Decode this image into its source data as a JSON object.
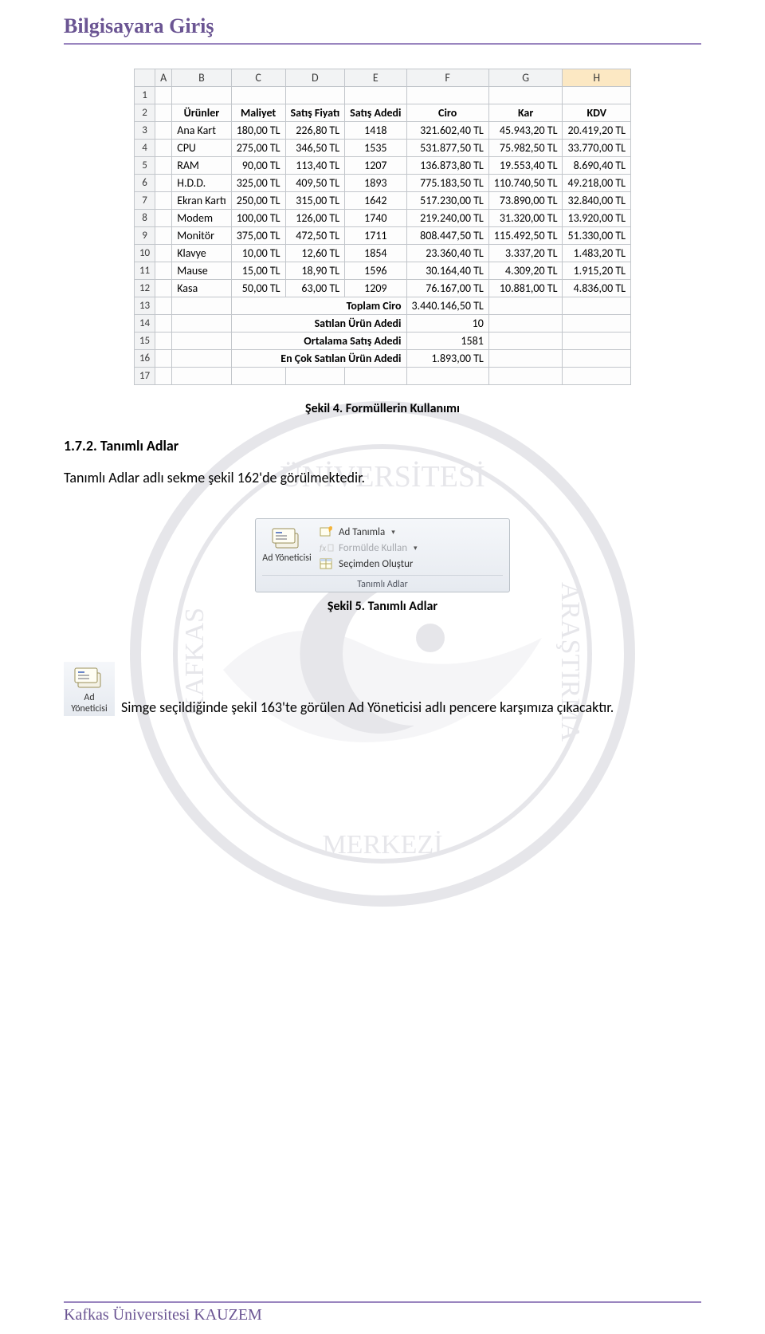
{
  "header": {
    "title": "Bilgisayara Giriş"
  },
  "spreadsheet": {
    "columns": [
      "A",
      "B",
      "C",
      "D",
      "E",
      "F",
      "G",
      "H"
    ],
    "selected_col_index": 7,
    "row_numbers": [
      "1",
      "2",
      "3",
      "4",
      "5",
      "6",
      "7",
      "8",
      "9",
      "10",
      "11",
      "12",
      "13",
      "14",
      "15",
      "16",
      "17"
    ],
    "header_row": [
      "Ürünler",
      "Maliyet",
      "Satış Fiyatı",
      "Satış Adedi",
      "Ciro",
      "Kar",
      "KDV"
    ],
    "data_rows": [
      [
        "Ana Kart",
        "180,00 TL",
        "226,80 TL",
        "1418",
        "321.602,40 TL",
        "45.943,20 TL",
        "20.419,20 TL"
      ],
      [
        "CPU",
        "275,00 TL",
        "346,50 TL",
        "1535",
        "531.877,50 TL",
        "75.982,50 TL",
        "33.770,00 TL"
      ],
      [
        "RAM",
        "90,00 TL",
        "113,40 TL",
        "1207",
        "136.873,80 TL",
        "19.553,40 TL",
        "8.690,40 TL"
      ],
      [
        "H.D.D.",
        "325,00 TL",
        "409,50 TL",
        "1893",
        "775.183,50 TL",
        "110.740,50 TL",
        "49.218,00 TL"
      ],
      [
        "Ekran Kartı",
        "250,00 TL",
        "315,00 TL",
        "1642",
        "517.230,00 TL",
        "73.890,00 TL",
        "32.840,00 TL"
      ],
      [
        "Modem",
        "100,00 TL",
        "126,00 TL",
        "1740",
        "219.240,00 TL",
        "31.320,00 TL",
        "13.920,00 TL"
      ],
      [
        "Monitör",
        "375,00 TL",
        "472,50 TL",
        "1711",
        "808.447,50 TL",
        "115.492,50 TL",
        "51.330,00 TL"
      ],
      [
        "Klavye",
        "10,00 TL",
        "12,60 TL",
        "1854",
        "23.360,40 TL",
        "3.337,20 TL",
        "1.483,20 TL"
      ],
      [
        "Mause",
        "15,00 TL",
        "18,90 TL",
        "1596",
        "30.164,40 TL",
        "4.309,20 TL",
        "1.915,20 TL"
      ],
      [
        "Kasa",
        "50,00 TL",
        "63,00 TL",
        "1209",
        "76.167,00 TL",
        "10.881,00 TL",
        "4.836,00 TL"
      ]
    ],
    "summary_rows": [
      {
        "label": "Toplam Ciro",
        "value": "3.440.146,50 TL"
      },
      {
        "label": "Satılan Ürün Adedi",
        "value": "10"
      },
      {
        "label": "Ortalama Satış Adedi",
        "value": "1581"
      },
      {
        "label": "En Çok Satılan Ürün Adedi",
        "value": "1.893,00 TL"
      }
    ]
  },
  "caption1": "Şekil 4. Formüllerin Kullanımı",
  "section_heading": "1.7.2. Tanımlı Adlar",
  "body_text": "Tanımlı Adlar adlı sekme şekil 162'de görülmektedir.",
  "ribbon": {
    "manager_label": "Ad Yöneticisi",
    "items": {
      "define": "Ad Tanımla",
      "use_in_formula": "Formülde Kullan",
      "create_from_selection": "Seçimden Oluştur"
    },
    "group_title": "Tanımlı Adlar"
  },
  "caption2": "Şekil 5. Tanımlı Adlar",
  "inline": {
    "text": " Simge seçildiğinde şekil 163'te görülen Ad Yöneticisi adlı pencere karşımıza çıkacaktır."
  },
  "footer": {
    "text": "Kafkas Üniversitesi KAUZEM"
  },
  "colors": {
    "accent": "#6b5593",
    "accent_light": "#9a85bf",
    "grid_border": "#c2c6cb",
    "col_hdr_bg": "#f2f3f4",
    "sel_col_bg": "#fce8c3",
    "ribbon_border": "#b9c0c7"
  }
}
